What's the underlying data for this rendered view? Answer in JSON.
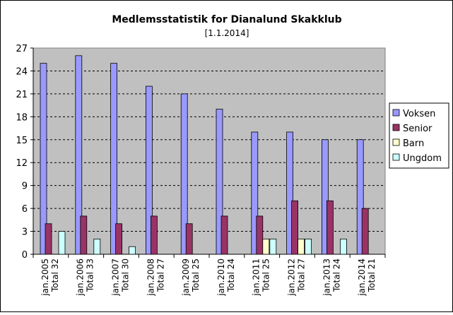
{
  "chart_data": {
    "type": "bar",
    "title": "Medlemsstatistik for Dianalund Skakklub",
    "subtitle": "[1.1.2014]",
    "categories": [
      [
        "jan.2005",
        "Total 32"
      ],
      [
        "jan.2006",
        "Total 33"
      ],
      [
        "jan.2007",
        "Total 30"
      ],
      [
        "jan.2008",
        "Total 27"
      ],
      [
        "jan.2009",
        "Total 25"
      ],
      [
        "jan.2010",
        "Total 24"
      ],
      [
        "jan.2011",
        "Total 25"
      ],
      [
        "jan.2012",
        "Total 27"
      ],
      [
        "jan.2013",
        "Total 24"
      ],
      [
        "jan.2014",
        "Total 21"
      ]
    ],
    "series": [
      {
        "name": "Voksen",
        "color": "#9999ff",
        "values": [
          25,
          26,
          25,
          22,
          21,
          19,
          16,
          16,
          15,
          15
        ]
      },
      {
        "name": "Senior",
        "color": "#993366",
        "values": [
          4,
          5,
          4,
          5,
          4,
          5,
          5,
          7,
          7,
          6
        ]
      },
      {
        "name": "Barn",
        "color": "#ffffcc",
        "values": [
          0,
          0,
          0,
          0,
          0,
          0,
          2,
          2,
          0,
          0
        ]
      },
      {
        "name": "Ungdom",
        "color": "#ccffff",
        "values": [
          3,
          2,
          1,
          0,
          0,
          0,
          2,
          2,
          2,
          0
        ]
      }
    ],
    "ylim": [
      0,
      27
    ],
    "yticks": [
      0,
      3,
      6,
      9,
      12,
      15,
      18,
      21,
      24,
      27
    ],
    "plot_background": "#c0c0c0",
    "grid": true,
    "legend": "right"
  }
}
